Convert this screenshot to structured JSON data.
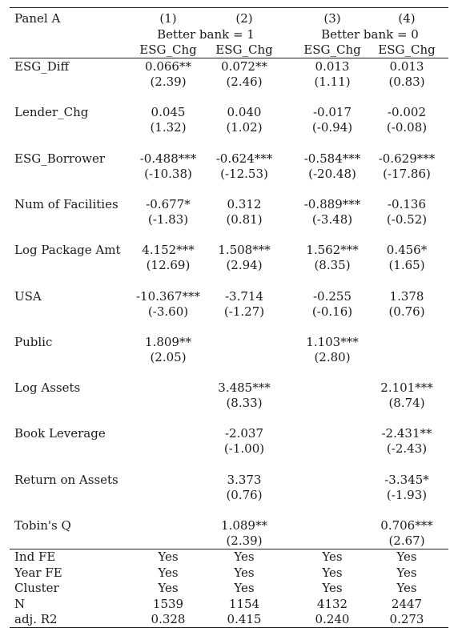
{
  "panel_label": "Panel A",
  "col_numbers": [
    "(1)",
    "(2)",
    "(3)",
    "(4)"
  ],
  "group_headers": [
    "Better bank = 1",
    "Better bank = 0"
  ],
  "dep_vars": [
    "ESG_Chg",
    "ESG_Chg",
    "ESG_Chg",
    "ESG_Chg"
  ],
  "variables": [
    {
      "name": "ESG_Diff",
      "coef": [
        "0.066**",
        "0.072**",
        "0.013",
        "0.013"
      ],
      "t": [
        "(2.39)",
        "(2.46)",
        "(1.11)",
        "(0.83)"
      ]
    },
    {
      "name": "Lender_Chg",
      "coef": [
        "0.045",
        "0.040",
        "-0.017",
        "-0.002"
      ],
      "t": [
        "(1.32)",
        "(1.02)",
        "(-0.94)",
        "(-0.08)"
      ]
    },
    {
      "name": "ESG_Borrower",
      "coef": [
        "-0.488***",
        "-0.624***",
        "-0.584***",
        "-0.629***"
      ],
      "t": [
        "(-10.38)",
        "(-12.53)",
        "(-20.48)",
        "(-17.86)"
      ]
    },
    {
      "name": "Num of Facilities",
      "coef": [
        "-0.677*",
        "0.312",
        "-0.889***",
        "-0.136"
      ],
      "t": [
        "(-1.83)",
        "(0.81)",
        "(-3.48)",
        "(-0.52)"
      ]
    },
    {
      "name": "Log Package Amt",
      "coef": [
        "4.152***",
        "1.508***",
        "1.562***",
        "0.456*"
      ],
      "t": [
        "(12.69)",
        "(2.94)",
        "(8.35)",
        "(1.65)"
      ]
    },
    {
      "name": "USA",
      "coef": [
        "-10.367***",
        "-3.714",
        "-0.255",
        "1.378"
      ],
      "t": [
        "(-3.60)",
        "(-1.27)",
        "(-0.16)",
        "(0.76)"
      ]
    },
    {
      "name": "Public",
      "coef": [
        "1.809**",
        "",
        "1.103***",
        ""
      ],
      "t": [
        "(2.05)",
        "",
        "(2.80)",
        ""
      ]
    },
    {
      "name": "Log Assets",
      "coef": [
        "",
        "3.485***",
        "",
        "2.101***"
      ],
      "t": [
        "",
        "(8.33)",
        "",
        "(8.74)"
      ]
    },
    {
      "name": "Book Leverage",
      "coef": [
        "",
        "-2.037",
        "",
        "-2.431**"
      ],
      "t": [
        "",
        "(-1.00)",
        "",
        "(-2.43)"
      ]
    },
    {
      "name": "Return on Assets",
      "coef": [
        "",
        "3.373",
        "",
        "-3.345*"
      ],
      "t": [
        "",
        "(0.76)",
        "",
        "(-1.93)"
      ]
    },
    {
      "name": "Tobin's Q",
      "coef": [
        "",
        "1.089**",
        "",
        "0.706***"
      ],
      "t": [
        "",
        "(2.39)",
        "",
        "(2.67)"
      ]
    }
  ],
  "footer": [
    {
      "name": "Ind FE",
      "values": [
        "Yes",
        "Yes",
        "Yes",
        "Yes"
      ]
    },
    {
      "name": "Year FE",
      "values": [
        "Yes",
        "Yes",
        "Yes",
        "Yes"
      ]
    },
    {
      "name": "Cluster",
      "values": [
        "Yes",
        "Yes",
        "Yes",
        "Yes"
      ]
    },
    {
      "name": "N",
      "values": [
        "1539",
        "1154",
        "4132",
        "2447"
      ]
    },
    {
      "name": "adj. R2",
      "values": [
        "0.328",
        "0.415",
        "0.240",
        "0.273"
      ]
    }
  ]
}
